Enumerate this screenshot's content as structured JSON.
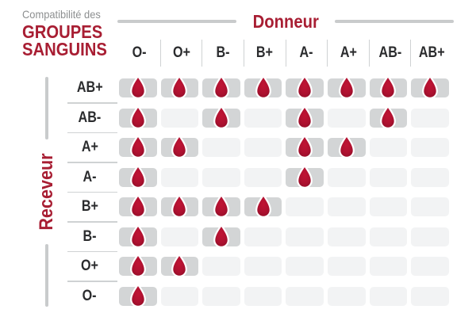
{
  "title": {
    "eyebrow": "Compatibilité des",
    "line1": "GROUPES",
    "line2": "SANGUINS"
  },
  "axes": {
    "donor": "Donneur",
    "recipient": "Receveur"
  },
  "icons": {
    "compatible_marker": "blood-drop-icon"
  },
  "colors": {
    "accent_red": "#A81E33",
    "drop_center": "#C01434",
    "drop_edge": "#8C0D26",
    "cell_active": "#D3D5D6",
    "cell_inactive": "#F2F3F4",
    "line_gray": "#C9CBCC",
    "separator": "#CFD2D3",
    "header_text": "#2B2C2E",
    "subtitle_gray": "#8D8F90"
  },
  "chart_data": {
    "type": "heatmap",
    "title": "Compatibilité des GROUPES SANGUINS",
    "x_axis_label": "Donneur",
    "y_axis_label": "Receveur",
    "columns": [
      "O-",
      "O+",
      "B-",
      "B+",
      "A-",
      "A+",
      "AB-",
      "AB+"
    ],
    "rows": [
      "AB+",
      "AB-",
      "A+",
      "A-",
      "B+",
      "B-",
      "O+",
      "O-"
    ],
    "values": [
      [
        1,
        1,
        1,
        1,
        1,
        1,
        1,
        1
      ],
      [
        1,
        0,
        1,
        0,
        1,
        0,
        1,
        0
      ],
      [
        1,
        1,
        0,
        0,
        1,
        1,
        0,
        0
      ],
      [
        1,
        0,
        0,
        0,
        1,
        0,
        0,
        0
      ],
      [
        1,
        1,
        1,
        1,
        0,
        0,
        0,
        0
      ],
      [
        1,
        0,
        1,
        0,
        0,
        0,
        0,
        0
      ],
      [
        1,
        1,
        0,
        0,
        0,
        0,
        0,
        0
      ],
      [
        1,
        0,
        0,
        0,
        0,
        0,
        0,
        0
      ]
    ],
    "marker_meaning": "drop = compatible",
    "legend_position": "none",
    "grid": "off"
  }
}
